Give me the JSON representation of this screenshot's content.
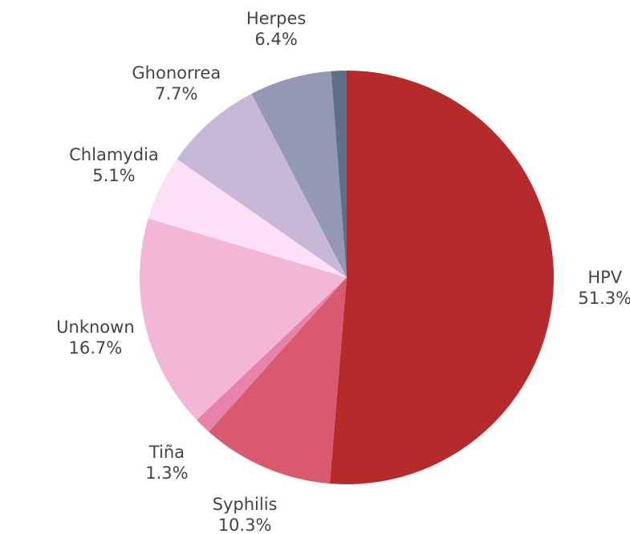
{
  "chart_data": {
    "type": "pie",
    "categories": [
      "HPV",
      "Syphilis",
      "Tiña",
      "Unknown",
      "Chlamydia",
      "Ghonorrea",
      "Herpes",
      null
    ],
    "values": [
      51.3,
      10.3,
      1.3,
      16.7,
      5.1,
      7.7,
      6.4,
      1.2
    ],
    "value_labels": [
      "51.3%",
      "10.3%",
      "1.3%",
      "16.7%",
      "5.1%",
      "7.7%",
      "6.4%",
      null
    ],
    "colors": [
      "#b52a2a",
      "#d95a6e",
      "#e882a8",
      "#f4b6d6",
      "#fde0f8",
      "#c8b8d8",
      "#9498b4",
      "#5d7186"
    ]
  }
}
